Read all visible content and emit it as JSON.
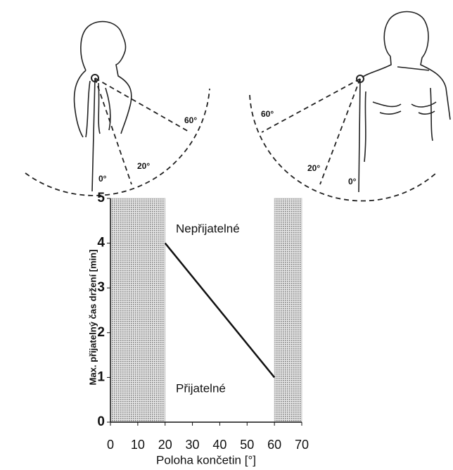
{
  "chart_data": {
    "type": "line",
    "x": [
      20,
      60
    ],
    "values": [
      4,
      1
    ],
    "color": "#111111",
    "xlim": [
      0,
      70
    ],
    "xticks": [
      0,
      10,
      20,
      30,
      40,
      50,
      60,
      70
    ],
    "ylim": [
      0,
      5
    ],
    "yticks": [
      0,
      1,
      2,
      3,
      4,
      5
    ],
    "shaded_x": [
      [
        0,
        20
      ],
      [
        60,
        70
      ]
    ],
    "shade_color": "#c9c9c9",
    "xlabel": "Poloha končetin [°]",
    "ylabel": "Max. přijatelný čas držení [min]",
    "annotations": [
      "Nepřijatelné",
      "Přijatelné"
    ]
  },
  "illustrations": {
    "left_angle_labels": [
      "0°",
      "20°",
      "60°"
    ],
    "right_angle_labels": [
      "60°",
      "20°",
      "0°"
    ]
  }
}
